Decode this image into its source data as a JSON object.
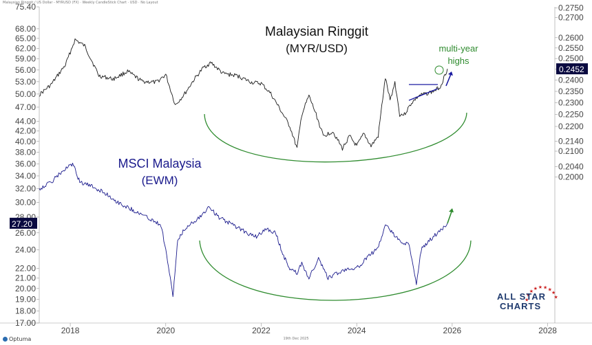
{
  "header": {
    "caption": "Malaysian Ringgit / US Dollar - MYRUSD (FX) · Weekly CandleStick Chart · USD · No Layout"
  },
  "footer": {
    "date": "19th Dec 2025",
    "logo_text": "Optuma"
  },
  "brand": {
    "line1": "ALL STAR",
    "line2": "CHARTS"
  },
  "colors": {
    "myr_line": "#1a1a1a",
    "ewm_line": "#1a1a8c",
    "arc": "#2e8b2e",
    "blue_annot": "#1a1aa0",
    "green_annot": "#2e8b2e",
    "tag_bg": "#0a0a40",
    "brand_star": "#cc2222"
  },
  "chart_data": [
    {
      "type": "line",
      "title": "Malaysian Ringgit",
      "subtitle": "(MYR/USD)",
      "axis": "right",
      "y_ticks": [
        "0.2750",
        "0.2700",
        "0.2600",
        "0.2550",
        "0.2500",
        "0.2450",
        "0.2400",
        "0.2350",
        "0.2300",
        "0.2250",
        "0.2200",
        "0.2140",
        "0.2100",
        "0.2040",
        "0.2000"
      ],
      "last_value": "0.2452",
      "x": [
        2017.35,
        2017.6,
        2017.9,
        2018.1,
        2018.3,
        2018.6,
        2018.9,
        2019.2,
        2019.5,
        2019.8,
        2020.0,
        2020.2,
        2020.4,
        2020.6,
        2020.8,
        2020.95,
        2021.2,
        2021.5,
        2021.8,
        2022.0,
        2022.2,
        2022.4,
        2022.6,
        2022.75,
        2022.85,
        2023.0,
        2023.15,
        2023.3,
        2023.5,
        2023.7,
        2023.85,
        2024.0,
        2024.15,
        2024.3,
        2024.45,
        2024.6,
        2024.7,
        2024.8,
        2024.9,
        2025.0,
        2025.15,
        2025.3,
        2025.45,
        2025.6,
        2025.75,
        2025.9
      ],
      "y": [
        0.2335,
        0.238,
        0.247,
        0.259,
        0.256,
        0.242,
        0.2405,
        0.244,
        0.2395,
        0.239,
        0.2425,
        0.229,
        0.234,
        0.2405,
        0.246,
        0.248,
        0.243,
        0.242,
        0.239,
        0.2385,
        0.234,
        0.227,
        0.22,
        0.211,
        0.225,
        0.233,
        0.225,
        0.216,
        0.218,
        0.211,
        0.216,
        0.212,
        0.217,
        0.212,
        0.216,
        0.241,
        0.231,
        0.239,
        0.225,
        0.225,
        0.23,
        0.233,
        0.234,
        0.235,
        0.237,
        0.2452
      ],
      "annotations": [
        "multi-year",
        "highs"
      ]
    },
    {
      "type": "line",
      "title": "MSCI Malaysia",
      "subtitle": "(EWM)",
      "axis": "left",
      "y_ticks": [
        "75.40",
        "68.00",
        "65.00",
        "62.00",
        "59.00",
        "56.00",
        "53.00",
        "50.00",
        "47.00",
        "44.00",
        "42.00",
        "40.00",
        "38.00",
        "36.00",
        "34.00",
        "32.00",
        "30.00",
        "28.00",
        "26.00",
        "24.00",
        "22.00",
        "21.00",
        "20.00",
        "19.00",
        "18.00",
        "17.00"
      ],
      "last_value": "27.20",
      "x": [
        2017.35,
        2017.6,
        2017.8,
        2018.05,
        2018.2,
        2018.4,
        2018.7,
        2019.0,
        2019.3,
        2019.6,
        2019.9,
        2020.0,
        2020.15,
        2020.2,
        2020.25,
        2020.4,
        2020.6,
        2020.8,
        2020.9,
        2021.1,
        2021.4,
        2021.7,
        2021.9,
        2022.1,
        2022.3,
        2022.45,
        2022.6,
        2022.75,
        2022.85,
        2023.0,
        2023.2,
        2023.4,
        2023.6,
        2023.8,
        2024.0,
        2024.2,
        2024.4,
        2024.5,
        2024.6,
        2024.75,
        2024.9,
        2025.1,
        2025.25,
        2025.35,
        2025.5,
        2025.7,
        2025.9
      ],
      "y": [
        32.0,
        33.0,
        34.5,
        36.0,
        33.0,
        32.5,
        31.5,
        30.0,
        29.0,
        28.0,
        27.0,
        24.0,
        19.2,
        22.0,
        25.0,
        26.5,
        27.5,
        28.5,
        29.5,
        28.0,
        27.0,
        26.0,
        25.5,
        26.5,
        26.0,
        23.5,
        22.0,
        21.5,
        22.5,
        21.0,
        23.0,
        21.0,
        21.5,
        22.0,
        22.0,
        23.0,
        24.0,
        25.0,
        27.0,
        26.0,
        25.0,
        24.5,
        20.5,
        24.0,
        25.0,
        26.0,
        27.2
      ]
    }
  ],
  "x_axis": {
    "ticks": [
      "2018",
      "2020",
      "2022",
      "2024",
      "2026",
      "2028"
    ],
    "tick_values": [
      2018,
      2020,
      2022,
      2024,
      2026,
      2028
    ],
    "range": [
      2017.35,
      2028.15
    ]
  },
  "left_axis_range": {
    "min": 17.0,
    "max": 75.4,
    "scale": "log"
  },
  "right_axis_range": {
    "min": 0.152,
    "max": 0.2755,
    "scale": "log"
  }
}
